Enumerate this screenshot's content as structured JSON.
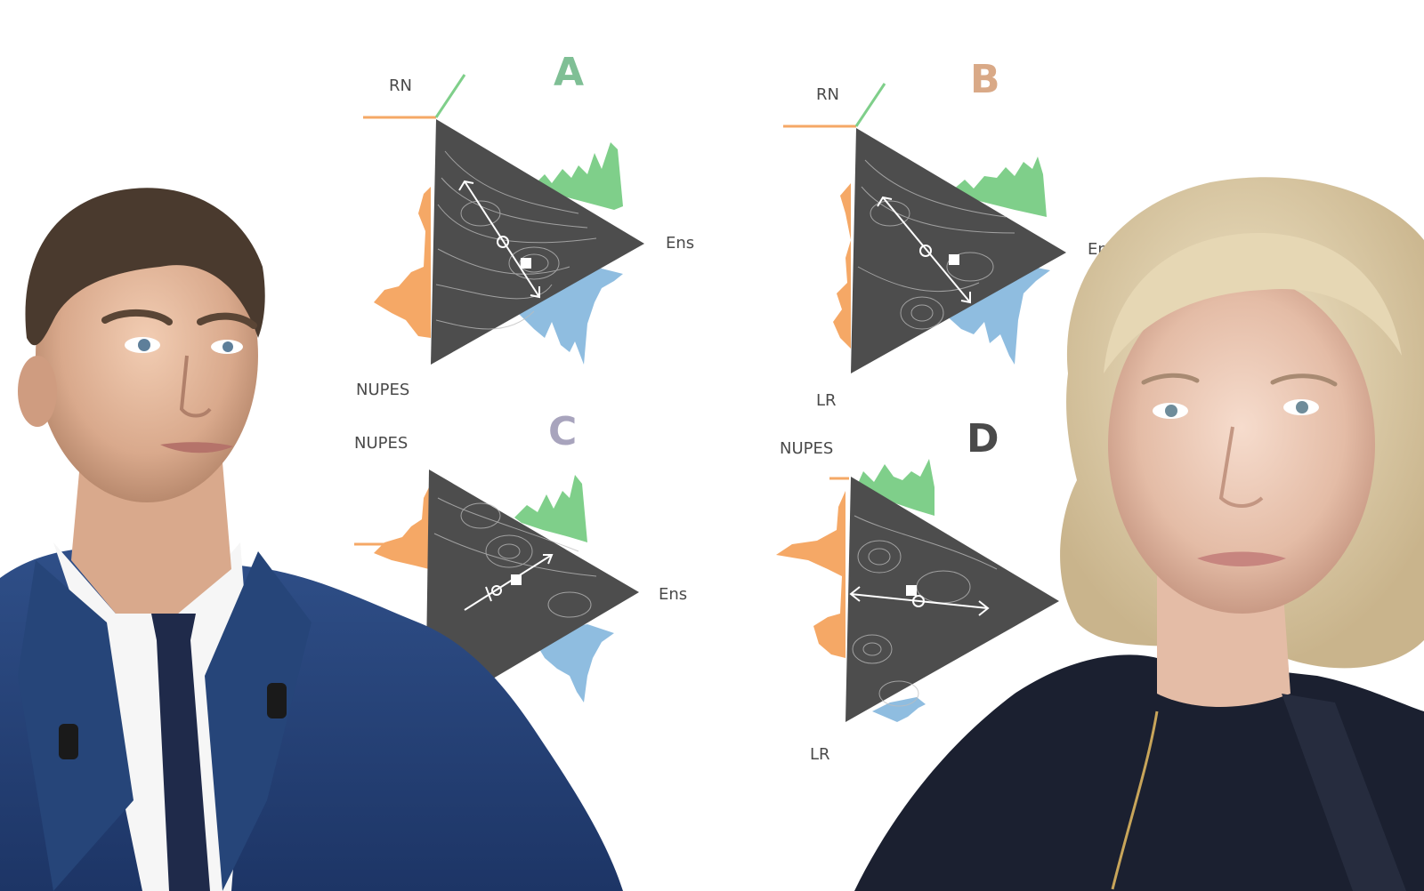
{
  "colors": {
    "letter_a": "#7fbf95",
    "letter_b": "#d9a987",
    "letter_c": "#a8a4bd",
    "letter_d": "#4a4a4a",
    "green_hist": "#7fcf8a",
    "orange_hist": "#f5a866",
    "blue_hist": "#8fbde0",
    "triangle_fill": "#4d4d4d",
    "contour": "#bdbdbd"
  },
  "panels": [
    {
      "letter": "A",
      "labels": {
        "top": "RN",
        "bottom": "NUPES",
        "right": "Ens"
      }
    },
    {
      "letter": "B",
      "labels": {
        "top": "RN",
        "bottom": "LR",
        "right": "Ens"
      }
    },
    {
      "letter": "C",
      "labels": {
        "top": "NUPES",
        "bottom": "",
        "right": "Ens"
      }
    },
    {
      "letter": "D",
      "labels": {
        "top": "NUPES",
        "bottom": "LR",
        "right": ""
      }
    }
  ],
  "photos": {
    "left": "portrait of a man in a dark blue suit and tie",
    "right": "portrait of a blonde woman in a dark jacket"
  }
}
